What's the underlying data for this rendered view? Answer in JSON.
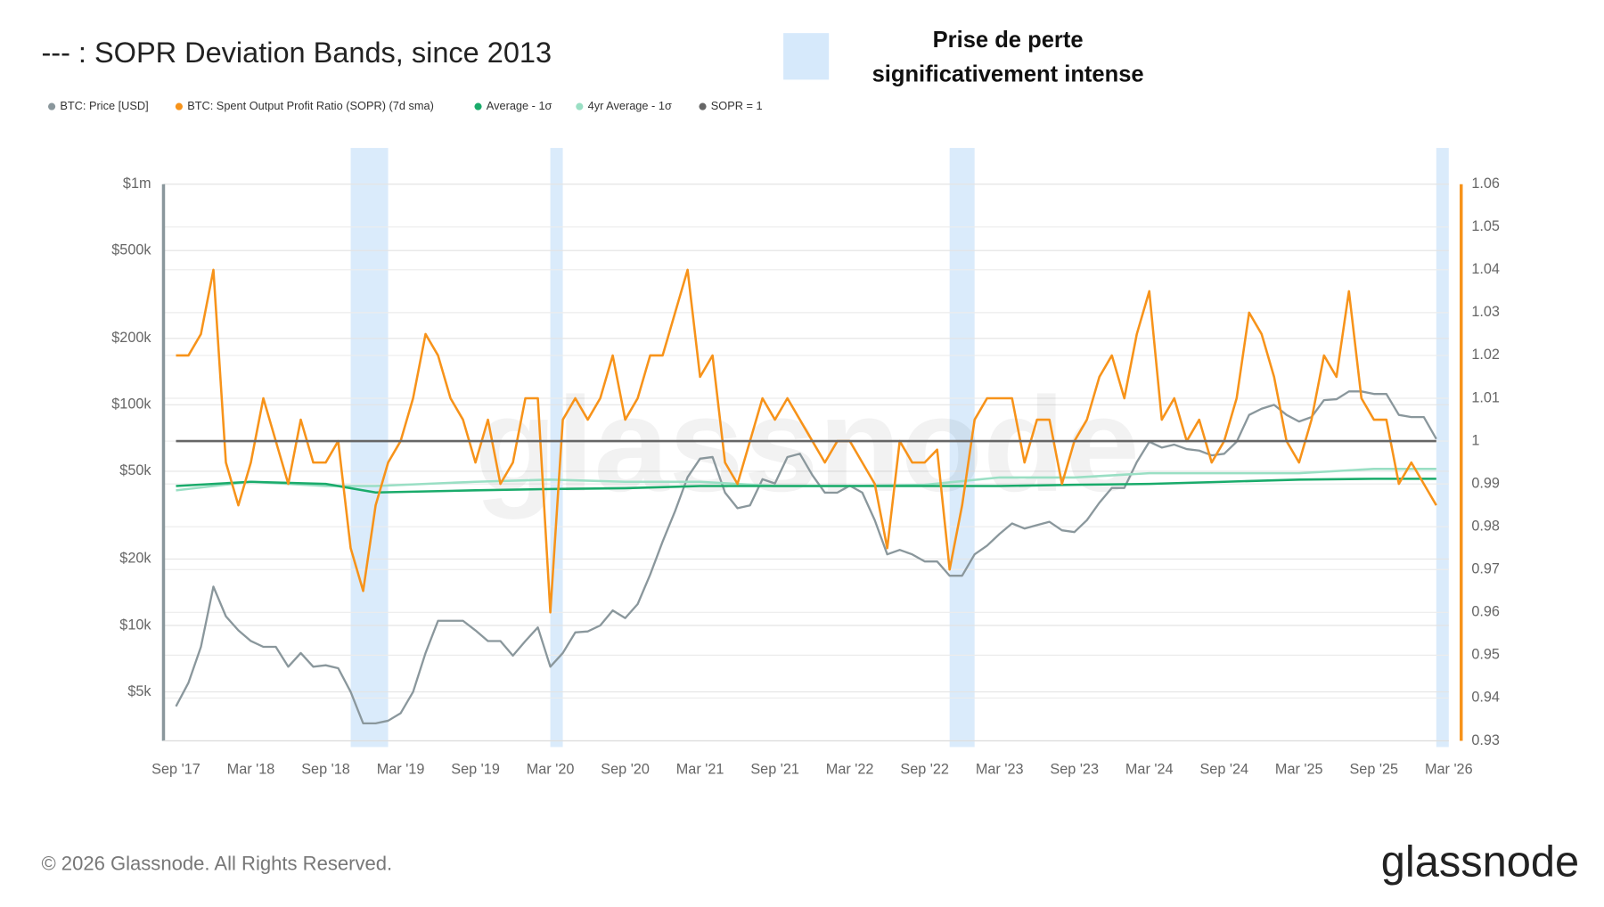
{
  "chart_data": {
    "type": "line",
    "title": "--- : SOPR Deviation Bands, since 2013",
    "highlight_label_lines": [
      "Prise de perte",
      "significativement intense"
    ],
    "highlight_color": "#d6e9fb",
    "highlight_ranges": [
      [
        "2018-11",
        "2019-02"
      ],
      [
        "2020-03",
        "2020-04"
      ],
      [
        "2022-11",
        "2023-01"
      ],
      [
        "2026-02",
        "2026-03"
      ]
    ],
    "watermark": "glassnode",
    "footer": "© 2026 Glassnode. All Rights Reserved.",
    "logo": "glassnode",
    "y_scale": "log",
    "grid": true,
    "xlim": [
      "2017-08",
      "2026-03"
    ],
    "xticks": [
      {
        "value": "2017-09",
        "label": "Sep '17"
      },
      {
        "value": "2018-03",
        "label": "Mar '18"
      },
      {
        "value": "2018-09",
        "label": "Sep '18"
      },
      {
        "value": "2019-03",
        "label": "Mar '19"
      },
      {
        "value": "2019-09",
        "label": "Sep '19"
      },
      {
        "value": "2020-03",
        "label": "Mar '20"
      },
      {
        "value": "2020-09",
        "label": "Sep '20"
      },
      {
        "value": "2021-03",
        "label": "Mar '21"
      },
      {
        "value": "2021-09",
        "label": "Sep '21"
      },
      {
        "value": "2022-03",
        "label": "Mar '22"
      },
      {
        "value": "2022-09",
        "label": "Sep '22"
      },
      {
        "value": "2023-03",
        "label": "Mar '23"
      },
      {
        "value": "2023-09",
        "label": "Sep '23"
      },
      {
        "value": "2024-03",
        "label": "Mar '24"
      },
      {
        "value": "2024-09",
        "label": "Sep '24"
      },
      {
        "value": "2025-03",
        "label": "Mar '25"
      },
      {
        "value": "2025-09",
        "label": "Sep '25"
      },
      {
        "value": "2026-03",
        "label": "Mar '26"
      }
    ],
    "ylim": [
      3000,
      1000000
    ],
    "yticks": [
      {
        "value": 1000000,
        "label": "$1m"
      },
      {
        "value": 500000,
        "label": "$500k"
      },
      {
        "value": 200000,
        "label": "$200k"
      },
      {
        "value": 100000,
        "label": "$100k"
      },
      {
        "value": 50000,
        "label": "$50k"
      },
      {
        "value": 20000,
        "label": "$20k"
      },
      {
        "value": 10000,
        "label": "$10k"
      },
      {
        "value": 5000,
        "label": "$5k"
      }
    ],
    "y2lim": [
      0.93,
      1.06
    ],
    "y2ticks": [
      0.93,
      0.94,
      0.95,
      0.96,
      0.97,
      0.98,
      0.99,
      1,
      1.01,
      1.02,
      1.03,
      1.04,
      1.05,
      1.06
    ],
    "x": [
      "2017-09",
      "2017-10",
      "2017-11",
      "2017-12",
      "2018-01",
      "2018-02",
      "2018-03",
      "2018-04",
      "2018-05",
      "2018-06",
      "2018-07",
      "2018-08",
      "2018-09",
      "2018-10",
      "2018-11",
      "2018-12",
      "2019-01",
      "2019-02",
      "2019-03",
      "2019-04",
      "2019-05",
      "2019-06",
      "2019-07",
      "2019-08",
      "2019-09",
      "2019-10",
      "2019-11",
      "2019-12",
      "2020-01",
      "2020-02",
      "2020-03",
      "2020-04",
      "2020-05",
      "2020-06",
      "2020-07",
      "2020-08",
      "2020-09",
      "2020-10",
      "2020-11",
      "2020-12",
      "2021-01",
      "2021-02",
      "2021-03",
      "2021-04",
      "2021-05",
      "2021-06",
      "2021-07",
      "2021-08",
      "2021-09",
      "2021-10",
      "2021-11",
      "2021-12",
      "2022-01",
      "2022-02",
      "2022-03",
      "2022-04",
      "2022-05",
      "2022-06",
      "2022-07",
      "2022-08",
      "2022-09",
      "2022-10",
      "2022-11",
      "2022-12",
      "2023-01",
      "2023-02",
      "2023-03",
      "2023-04",
      "2023-05",
      "2023-06",
      "2023-07",
      "2023-08",
      "2023-09",
      "2023-10",
      "2023-11",
      "2023-12",
      "2024-01",
      "2024-02",
      "2024-03",
      "2024-04",
      "2024-05",
      "2024-06",
      "2024-07",
      "2024-08",
      "2024-09",
      "2024-10",
      "2024-11",
      "2024-12",
      "2025-01",
      "2025-02",
      "2025-03",
      "2025-04",
      "2025-05",
      "2025-06",
      "2025-07",
      "2025-08",
      "2025-09",
      "2025-10",
      "2025-11",
      "2025-12",
      "2026-01",
      "2026-02"
    ],
    "series": [
      {
        "name": "BTC: Price [USD]",
        "color": "#8a979c",
        "axis": "y",
        "values": [
          4300,
          5500,
          8000,
          15000,
          11000,
          9500,
          8500,
          8000,
          8000,
          6500,
          7500,
          6500,
          6600,
          6400,
          5000,
          3600,
          3600,
          3700,
          4000,
          5000,
          7500,
          10500,
          10500,
          10500,
          9500,
          8500,
          8500,
          7300,
          8500,
          9800,
          6500,
          7500,
          9300,
          9400,
          10000,
          11700,
          10800,
          12500,
          17000,
          24000,
          33000,
          47000,
          57000,
          58000,
          40000,
          34000,
          35000,
          46000,
          44000,
          58000,
          60000,
          48000,
          40000,
          40000,
          43000,
          40000,
          30000,
          21000,
          22000,
          21000,
          19500,
          19500,
          16800,
          16800,
          21000,
          23000,
          26000,
          29000,
          27500,
          28500,
          29500,
          27000,
          26500,
          30000,
          36000,
          42000,
          42000,
          55000,
          68000,
          64000,
          66000,
          63000,
          62000,
          59000,
          60000,
          68000,
          90000,
          96000,
          100000,
          90000,
          84000,
          88000,
          105000,
          106000,
          115000,
          115000,
          112000,
          112000,
          90000,
          88000,
          88000,
          70000
        ]
      },
      {
        "name": "BTC: Spent Output Profit Ratio (SOPR) (7d sma)",
        "color": "#f7931a",
        "axis": "y2",
        "values": [
          1.02,
          1.02,
          1.025,
          1.04,
          0.995,
          0.985,
          0.995,
          1.01,
          1.0,
          0.99,
          1.005,
          0.995,
          0.995,
          1.0,
          0.975,
          0.965,
          0.985,
          0.995,
          1.0,
          1.01,
          1.025,
          1.02,
          1.01,
          1.005,
          0.995,
          1.005,
          0.99,
          0.995,
          1.01,
          1.01,
          0.96,
          1.005,
          1.01,
          1.005,
          1.01,
          1.02,
          1.005,
          1.01,
          1.02,
          1.02,
          1.03,
          1.04,
          1.015,
          1.02,
          0.995,
          0.99,
          1.0,
          1.01,
          1.005,
          1.01,
          1.005,
          1.0,
          0.995,
          1.0,
          1.0,
          0.995,
          0.99,
          0.975,
          1.0,
          0.995,
          0.995,
          0.998,
          0.97,
          0.985,
          1.005,
          1.01,
          1.01,
          1.01,
          0.995,
          1.005,
          1.005,
          0.99,
          1.0,
          1.005,
          1.015,
          1.02,
          1.01,
          1.025,
          1.035,
          1.005,
          1.01,
          1.0,
          1.005,
          0.995,
          1.0,
          1.01,
          1.03,
          1.025,
          1.015,
          1.0,
          0.995,
          1.005,
          1.02,
          1.015,
          1.035,
          1.01,
          1.005,
          1.005,
          0.99,
          0.995,
          0.99,
          0.985
        ]
      },
      {
        "name": "Average - 1σ",
        "color": "#1aab6b",
        "axis": "y2",
        "x": [
          "2017-09",
          "2018-03",
          "2018-09",
          "2019-01",
          "2019-09",
          "2020-03",
          "2020-09",
          "2021-03",
          "2021-09",
          "2022-03",
          "2022-09",
          "2023-03",
          "2023-09",
          "2024-03",
          "2024-09",
          "2025-03",
          "2025-09",
          "2026-02"
        ],
        "values": [
          0.9895,
          0.9905,
          0.99,
          0.988,
          0.9885,
          0.9888,
          0.989,
          0.9895,
          0.9895,
          0.9895,
          0.9895,
          0.9895,
          0.9898,
          0.99,
          0.9905,
          0.991,
          0.9912,
          0.9912
        ]
      },
      {
        "name": "4yr Average - 1σ",
        "color": "#9adfc4",
        "axis": "y2",
        "x": [
          "2017-09",
          "2018-03",
          "2018-09",
          "2019-01",
          "2019-09",
          "2020-03",
          "2020-09",
          "2021-03",
          "2021-09",
          "2022-03",
          "2022-09",
          "2023-03",
          "2023-09",
          "2024-03",
          "2024-09",
          "2025-03",
          "2025-09",
          "2026-02"
        ],
        "values": [
          0.9885,
          0.9905,
          0.9895,
          0.9895,
          0.9905,
          0.991,
          0.9905,
          0.9905,
          0.9895,
          0.9895,
          0.9898,
          0.9915,
          0.9915,
          0.9925,
          0.9925,
          0.9925,
          0.9935,
          0.9935
        ]
      },
      {
        "name": "SOPR = 1",
        "color": "#666666",
        "axis": "y2",
        "x": [
          "2017-09",
          "2026-02"
        ],
        "values": [
          1,
          1
        ]
      }
    ]
  }
}
